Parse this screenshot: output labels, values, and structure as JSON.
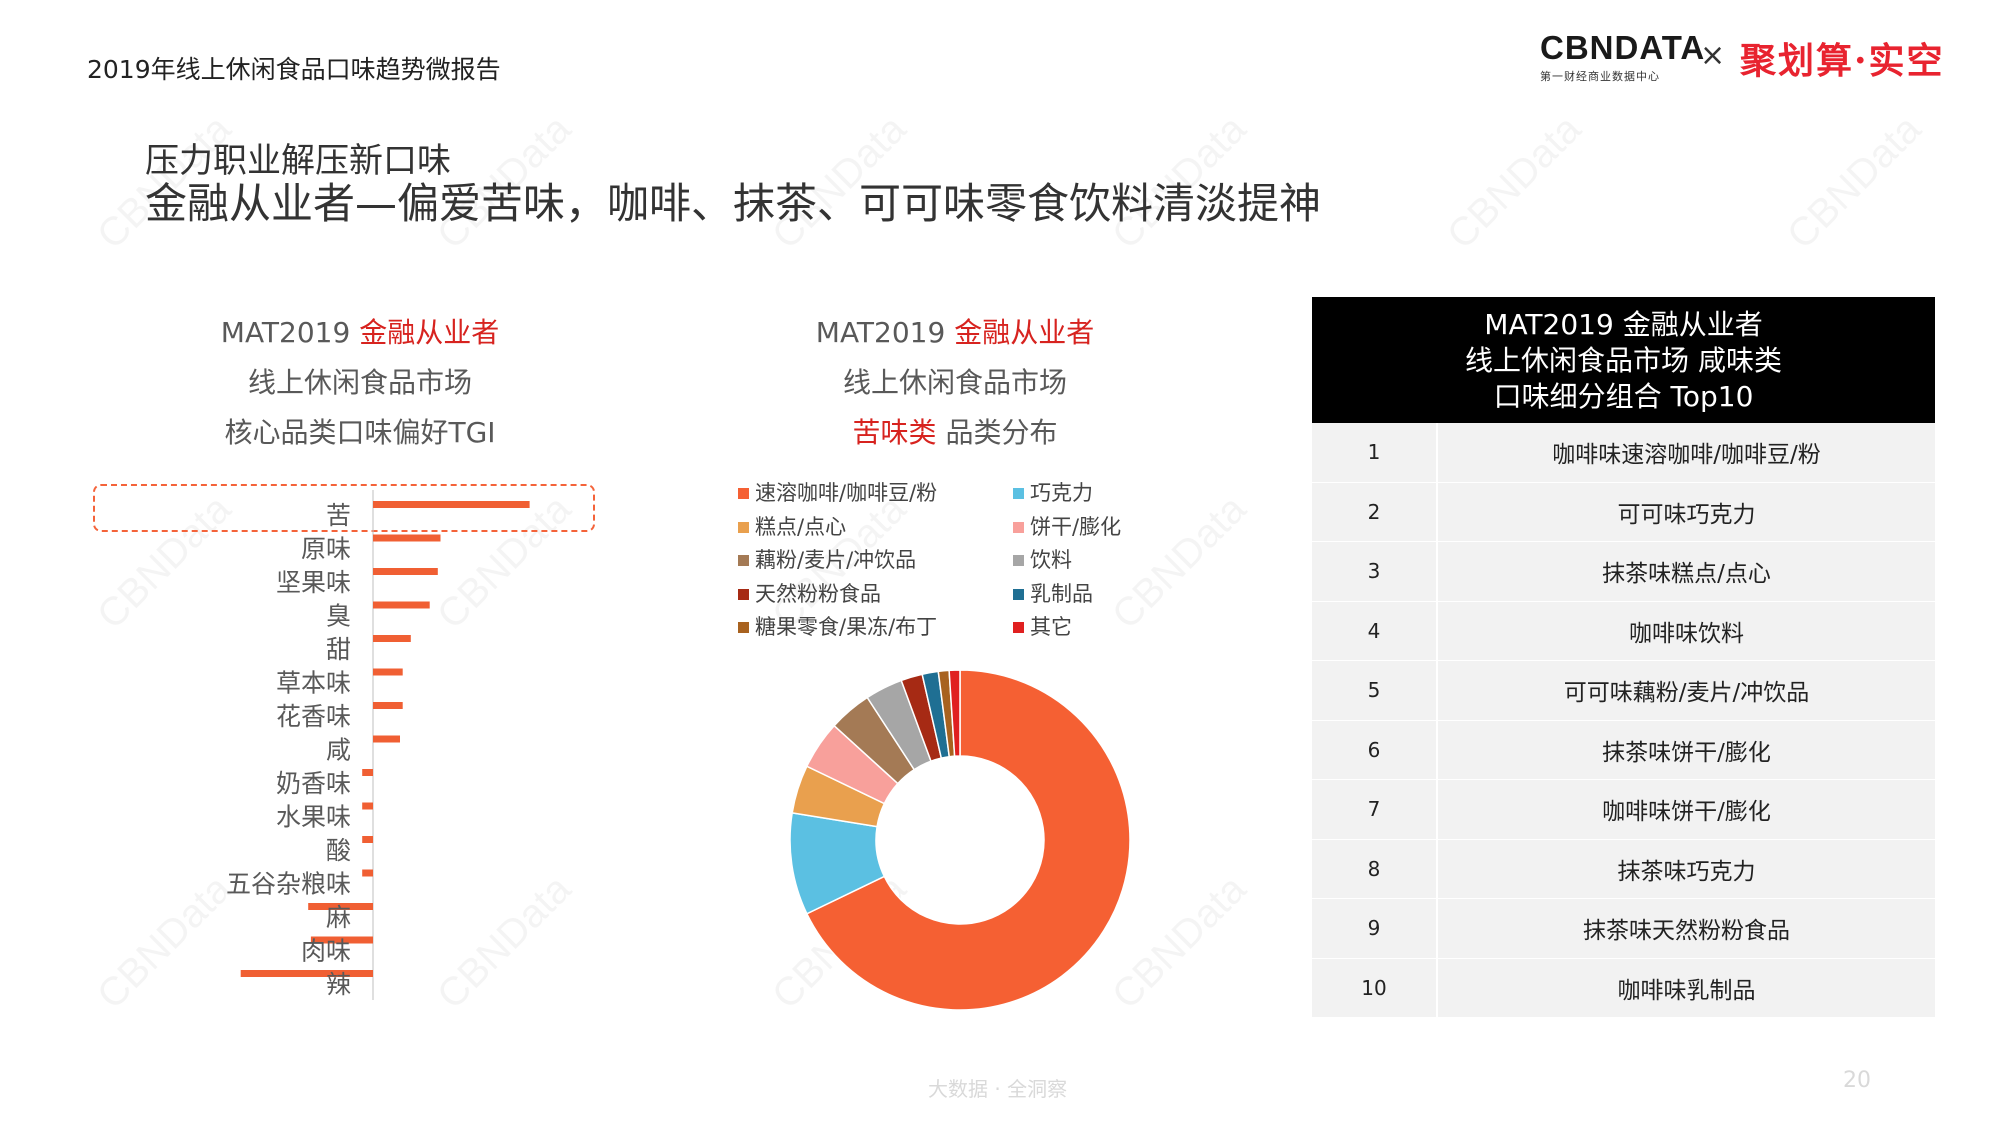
{
  "header": {
    "report_title": "2019年线上休闲食品口味趋势微报告",
    "cbn_logo_main": "CBNDATA",
    "cbn_logo_sub": "第一财经商业数据中心",
    "cross": "×",
    "partner_logo": "聚划算·实空"
  },
  "subtitle": "压力职业解压新口味",
  "headline": "金融从业者—偏爱苦味，咖啡、抹茶、可可味零食饮料清淡提神",
  "left_panel": {
    "title_prefix": "MAT2019 ",
    "title_highlight": "金融从业者",
    "title_line2": "线上休闲食品市场",
    "title_line3": "核心品类口味偏好TGI"
  },
  "mid_panel": {
    "title_prefix": "MAT2019 ",
    "title_highlight": "金融从业者",
    "title_line2": "线上休闲食品市场",
    "title_line3_highlight": "苦味类",
    "title_line3_rest": " 品类分布"
  },
  "chart_data": [
    {
      "type": "bar",
      "orientation": "horizontal",
      "categories": [
        "苦",
        "原味",
        "坚果味",
        "臭",
        "甜",
        "草本味",
        "花香味",
        "咸",
        "奶香味",
        "水果味",
        "酸",
        "五谷杂粮味",
        "麻",
        "肉味",
        "辣"
      ],
      "values": [
        158,
        125,
        124,
        121,
        114,
        111,
        111,
        110,
        96,
        96,
        96,
        96,
        76,
        77,
        51
      ],
      "baseline": 100,
      "xlim": [
        40,
        170
      ],
      "color": "#f05f33",
      "highlight_category": "苦"
    },
    {
      "type": "pie",
      "donut": true,
      "categories": [
        "速溶咖啡/咖啡豆/粉",
        "巧克力",
        "糕点/点心",
        "饼干/膨化",
        "藕粉/麦片/冲饮品",
        "饮料",
        "天然粉粉食品",
        "乳制品",
        "糖果零食/果冻/布丁",
        "其它"
      ],
      "values": [
        66.5,
        9.5,
        4.5,
        4.5,
        4.0,
        3.5,
        2.0,
        1.5,
        1.0,
        1.0
      ],
      "colors": [
        "#f56033",
        "#5bc0e2",
        "#e9a04e",
        "#f8a09b",
        "#a47a55",
        "#a6a6a6",
        "#a62a14",
        "#1f6f93",
        "#a8621f",
        "#e02020"
      ]
    }
  ],
  "table": {
    "header_lines": [
      "MAT2019 金融从业者",
      "线上休闲食品市场 咸味类",
      "口味细分组合 Top10"
    ],
    "rows": [
      {
        "rank": "1",
        "name": "咖啡味速溶咖啡/咖啡豆/粉"
      },
      {
        "rank": "2",
        "name": "可可味巧克力"
      },
      {
        "rank": "3",
        "name": "抹茶味糕点/点心"
      },
      {
        "rank": "4",
        "name": "咖啡味饮料"
      },
      {
        "rank": "5",
        "name": "可可味藕粉/麦片/冲饮品"
      },
      {
        "rank": "6",
        "name": "抹茶味饼干/膨化"
      },
      {
        "rank": "7",
        "name": "咖啡味饼干/膨化"
      },
      {
        "rank": "8",
        "name": "抹茶味巧克力"
      },
      {
        "rank": "9",
        "name": "抹茶味天然粉粉食品"
      },
      {
        "rank": "10",
        "name": "咖啡味乳制品"
      }
    ]
  },
  "footer": {
    "text": "大数据 · 全洞察",
    "page": "20"
  },
  "watermark": "CBNData"
}
